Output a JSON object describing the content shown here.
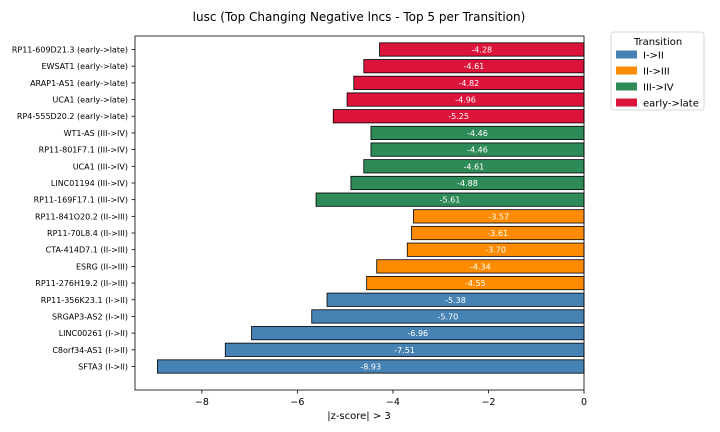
{
  "chart_data": {
    "type": "bar",
    "orientation": "horizontal",
    "title": "lusc (Top Changing Negative lncs - Top 5 per Transition)",
    "xlabel": "|z-score| > 3",
    "ylabel": "",
    "xlim": [
      -9.4,
      0
    ],
    "xticks": [
      -8,
      -6,
      -4,
      -2,
      0
    ],
    "xtick_labels": [
      "−8",
      "−6",
      "−4",
      "−2",
      "0"
    ],
    "grid": false,
    "legend": {
      "title": "Transition",
      "position": "outside-top-right",
      "entries": [
        {
          "label": "I->II",
          "color": "#4682b4"
        },
        {
          "label": "II->III",
          "color": "#ff8c00"
        },
        {
          "label": "III->IV",
          "color": "#2e8b57"
        },
        {
          "label": "early->late",
          "color": "#dc143c"
        }
      ]
    },
    "bars": [
      {
        "category": "RP11-609D21.3 (early->late)",
        "value": -4.28,
        "label": "-4.28",
        "group": "early->late"
      },
      {
        "category": "EWSAT1 (early->late)",
        "value": -4.61,
        "label": "-4.61",
        "group": "early->late"
      },
      {
        "category": "ARAP1-AS1 (early->late)",
        "value": -4.82,
        "label": "-4.82",
        "group": "early->late"
      },
      {
        "category": "UCA1 (early->late)",
        "value": -4.96,
        "label": "-4.96",
        "group": "early->late"
      },
      {
        "category": "RP4-555D20.2 (early->late)",
        "value": -5.25,
        "label": "-5.25",
        "group": "early->late"
      },
      {
        "category": "WT1-AS (III->IV)",
        "value": -4.46,
        "label": "-4.46",
        "group": "III->IV"
      },
      {
        "category": "RP11-801F7.1 (III->IV)",
        "value": -4.46,
        "label": "-4.46",
        "group": "III->IV"
      },
      {
        "category": "UCA1 (III->IV)",
        "value": -4.61,
        "label": "-4.61",
        "group": "III->IV"
      },
      {
        "category": "LINC01194 (III->IV)",
        "value": -4.88,
        "label": "-4.88",
        "group": "III->IV"
      },
      {
        "category": "RP11-169F17.1 (III->IV)",
        "value": -5.61,
        "label": "-5.61",
        "group": "III->IV"
      },
      {
        "category": "RP11-841O20.2 (II->III)",
        "value": -3.57,
        "label": "-3.57",
        "group": "II->III"
      },
      {
        "category": "RP11-70L8.4 (II->III)",
        "value": -3.61,
        "label": "-3.61",
        "group": "II->III"
      },
      {
        "category": "CTA-414D7.1 (II->III)",
        "value": -3.7,
        "label": "-3.70",
        "group": "II->III"
      },
      {
        "category": "ESRG (II->III)",
        "value": -4.34,
        "label": "-4.34",
        "group": "II->III"
      },
      {
        "category": "RP11-276H19.2 (II->III)",
        "value": -4.55,
        "label": "-4.55",
        "group": "II->III"
      },
      {
        "category": "RP11-356K23.1 (I->II)",
        "value": -5.38,
        "label": "-5.38",
        "group": "I->II"
      },
      {
        "category": "SRGAP3-AS2 (I->II)",
        "value": -5.7,
        "label": "-5.70",
        "group": "I->II"
      },
      {
        "category": "LINC00261 (I->II)",
        "value": -6.96,
        "label": "-6.96",
        "group": "I->II"
      },
      {
        "category": "C8orf34-AS1 (I->II)",
        "value": -7.51,
        "label": "-7.51",
        "group": "I->II"
      },
      {
        "category": "SFTA3 (I->II)",
        "value": -8.93,
        "label": "-8.93",
        "group": "I->II"
      }
    ]
  }
}
